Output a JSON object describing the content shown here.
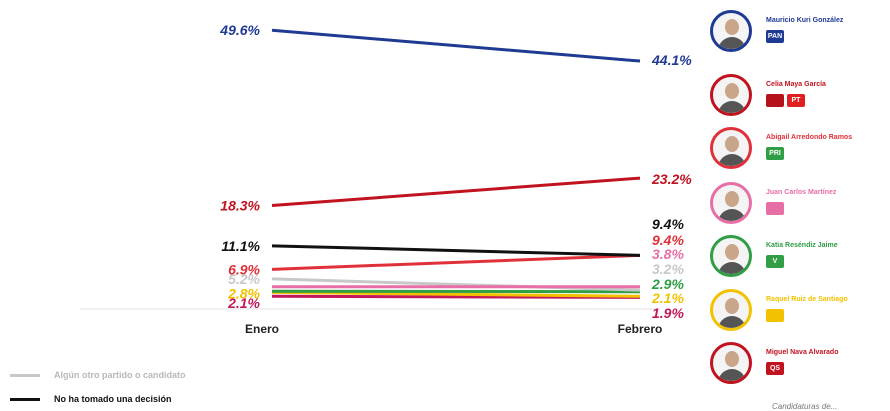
{
  "chart_data": {
    "type": "line",
    "x": [
      "Enero",
      "Febrero"
    ],
    "series": [
      {
        "name": "Mauricio Kuri González",
        "values": [
          49.6,
          44.1
        ],
        "labels": [
          "49.6%",
          "44.1%"
        ],
        "color": "#1f3a93"
      },
      {
        "name": "Celia Maya García",
        "values": [
          18.3,
          23.2
        ],
        "labels": [
          "18.3%",
          "23.2%"
        ],
        "color": "#c0121f"
      },
      {
        "name": "No ha tomado una decisión",
        "values": [
          11.1,
          9.4
        ],
        "labels": [
          "11.1%",
          "9.4%"
        ],
        "color": "#111111"
      },
      {
        "name": "Abigail Arredondo Ramos",
        "values": [
          6.9,
          9.4
        ],
        "labels": [
          "6.9%",
          "9.4%"
        ],
        "color": "#e0303a"
      },
      {
        "name": "Juan Carlos Martínez",
        "values": [
          3.8,
          3.8
        ],
        "labels": [
          "",
          "3.8%"
        ],
        "color": "#e76fa6"
      },
      {
        "name": "Algún otro partido o candidato",
        "values": [
          5.2,
          3.2
        ],
        "labels": [
          "5.2%",
          "3.2%"
        ],
        "color": "#c8c8c8"
      },
      {
        "name": "Katia Reséndiz Jaime",
        "values": [
          3.0,
          2.9
        ],
        "labels": [
          "",
          "2.9%"
        ],
        "color": "#2f9e44"
      },
      {
        "name": "Raquel Ruiz de Santiago",
        "values": [
          2.8,
          2.1
        ],
        "labels": [
          "2.8%",
          "2.1%"
        ],
        "color": "#f2c200"
      },
      {
        "name": "Miguel Nava Alvarado",
        "values": [
          2.1,
          1.9
        ],
        "labels": [
          "2.1%",
          "1.9%"
        ],
        "color": "#c2185b"
      }
    ],
    "ylim": [
      0,
      50
    ]
  },
  "candidates": [
    {
      "name": "Mauricio Kuri González",
      "color": "#1f3a93",
      "badges": [
        {
          "text": "PAN",
          "color": "#1f3a93"
        }
      ]
    },
    {
      "name": "Celia Maya García",
      "color": "#c0121f",
      "badges": [
        {
          "text": "",
          "color": "#b5121b"
        },
        {
          "text": "PT",
          "color": "#e02020"
        }
      ]
    },
    {
      "name": "Abigail Arredondo Ramos",
      "color": "#e0303a",
      "badges": [
        {
          "text": "PRI",
          "color": "#2f9e44"
        }
      ]
    },
    {
      "name": "Juan Carlos Martínez",
      "color": "#e76fa6",
      "badges": [
        {
          "text": "",
          "color": "#e76fa6"
        }
      ]
    },
    {
      "name": "Katia Reséndiz Jaime",
      "color": "#2f9e44",
      "badges": [
        {
          "text": "V",
          "color": "#2f9e44"
        }
      ]
    },
    {
      "name": "Raquel Ruiz de Santiago",
      "color": "#f2c200",
      "badges": [
        {
          "text": "",
          "color": "#f2c200"
        }
      ]
    },
    {
      "name": "Miguel Nava Alvarado",
      "color": "#c0121f",
      "badges": [
        {
          "text": "QS",
          "color": "#c0121f"
        }
      ]
    }
  ],
  "legend": [
    {
      "label": "Algún otro partido o candidato",
      "color": "#c8c8c8"
    },
    {
      "label": "No ha tomado una decisión",
      "color": "#111111"
    }
  ],
  "footnote": "Candidaturas de..."
}
